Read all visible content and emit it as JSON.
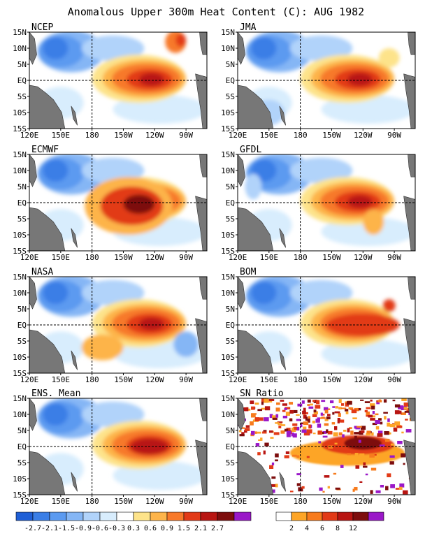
{
  "chart_data": {
    "type": "heatmap",
    "title": "Anomalous Upper 300m Heat Content (C): AUG 1982",
    "x_ticks": [
      "120E",
      "150E",
      "180",
      "150W",
      "120W",
      "90W"
    ],
    "y_ticks": [
      "15N",
      "10N",
      "5N",
      "EQ",
      "5S",
      "10S",
      "15S"
    ],
    "lon_range": [
      120,
      290
    ],
    "lat_range": [
      -15,
      15
    ],
    "dashed_lines": {
      "lon": 180,
      "lat": 0
    },
    "panels": [
      {
        "name": "NCEP"
      },
      {
        "name": "JMA"
      },
      {
        "name": "ECMWF"
      },
      {
        "name": "GFDL"
      },
      {
        "name": "NASA"
      },
      {
        "name": "BOM"
      },
      {
        "name": "ENS. Mean"
      },
      {
        "name": "SN Ratio"
      }
    ],
    "colorbar_anomaly": {
      "labels": [
        "-2.7",
        "-2.1",
        "-1.5",
        "-0.9",
        "-0.6",
        "-0.3",
        "0.3",
        "0.6",
        "0.9",
        "1.5",
        "2.1",
        "2.7"
      ],
      "colors": [
        "#1f5fd6",
        "#3a7ee6",
        "#5b9af0",
        "#85b6f5",
        "#b1d3fa",
        "#d8edfd",
        "#ffffff",
        "#fde38a",
        "#fdb44a",
        "#f7792a",
        "#e23a17",
        "#b81512",
        "#7d0d0d",
        "#9a18c8"
      ]
    },
    "colorbar_sn": {
      "labels": [
        "2",
        "4",
        "6",
        "8",
        "12"
      ],
      "colors": [
        "#ffffff",
        "#fda527",
        "#f77b1d",
        "#e23a17",
        "#b81512",
        "#7d0d0d",
        "#9a18c8"
      ]
    }
  }
}
